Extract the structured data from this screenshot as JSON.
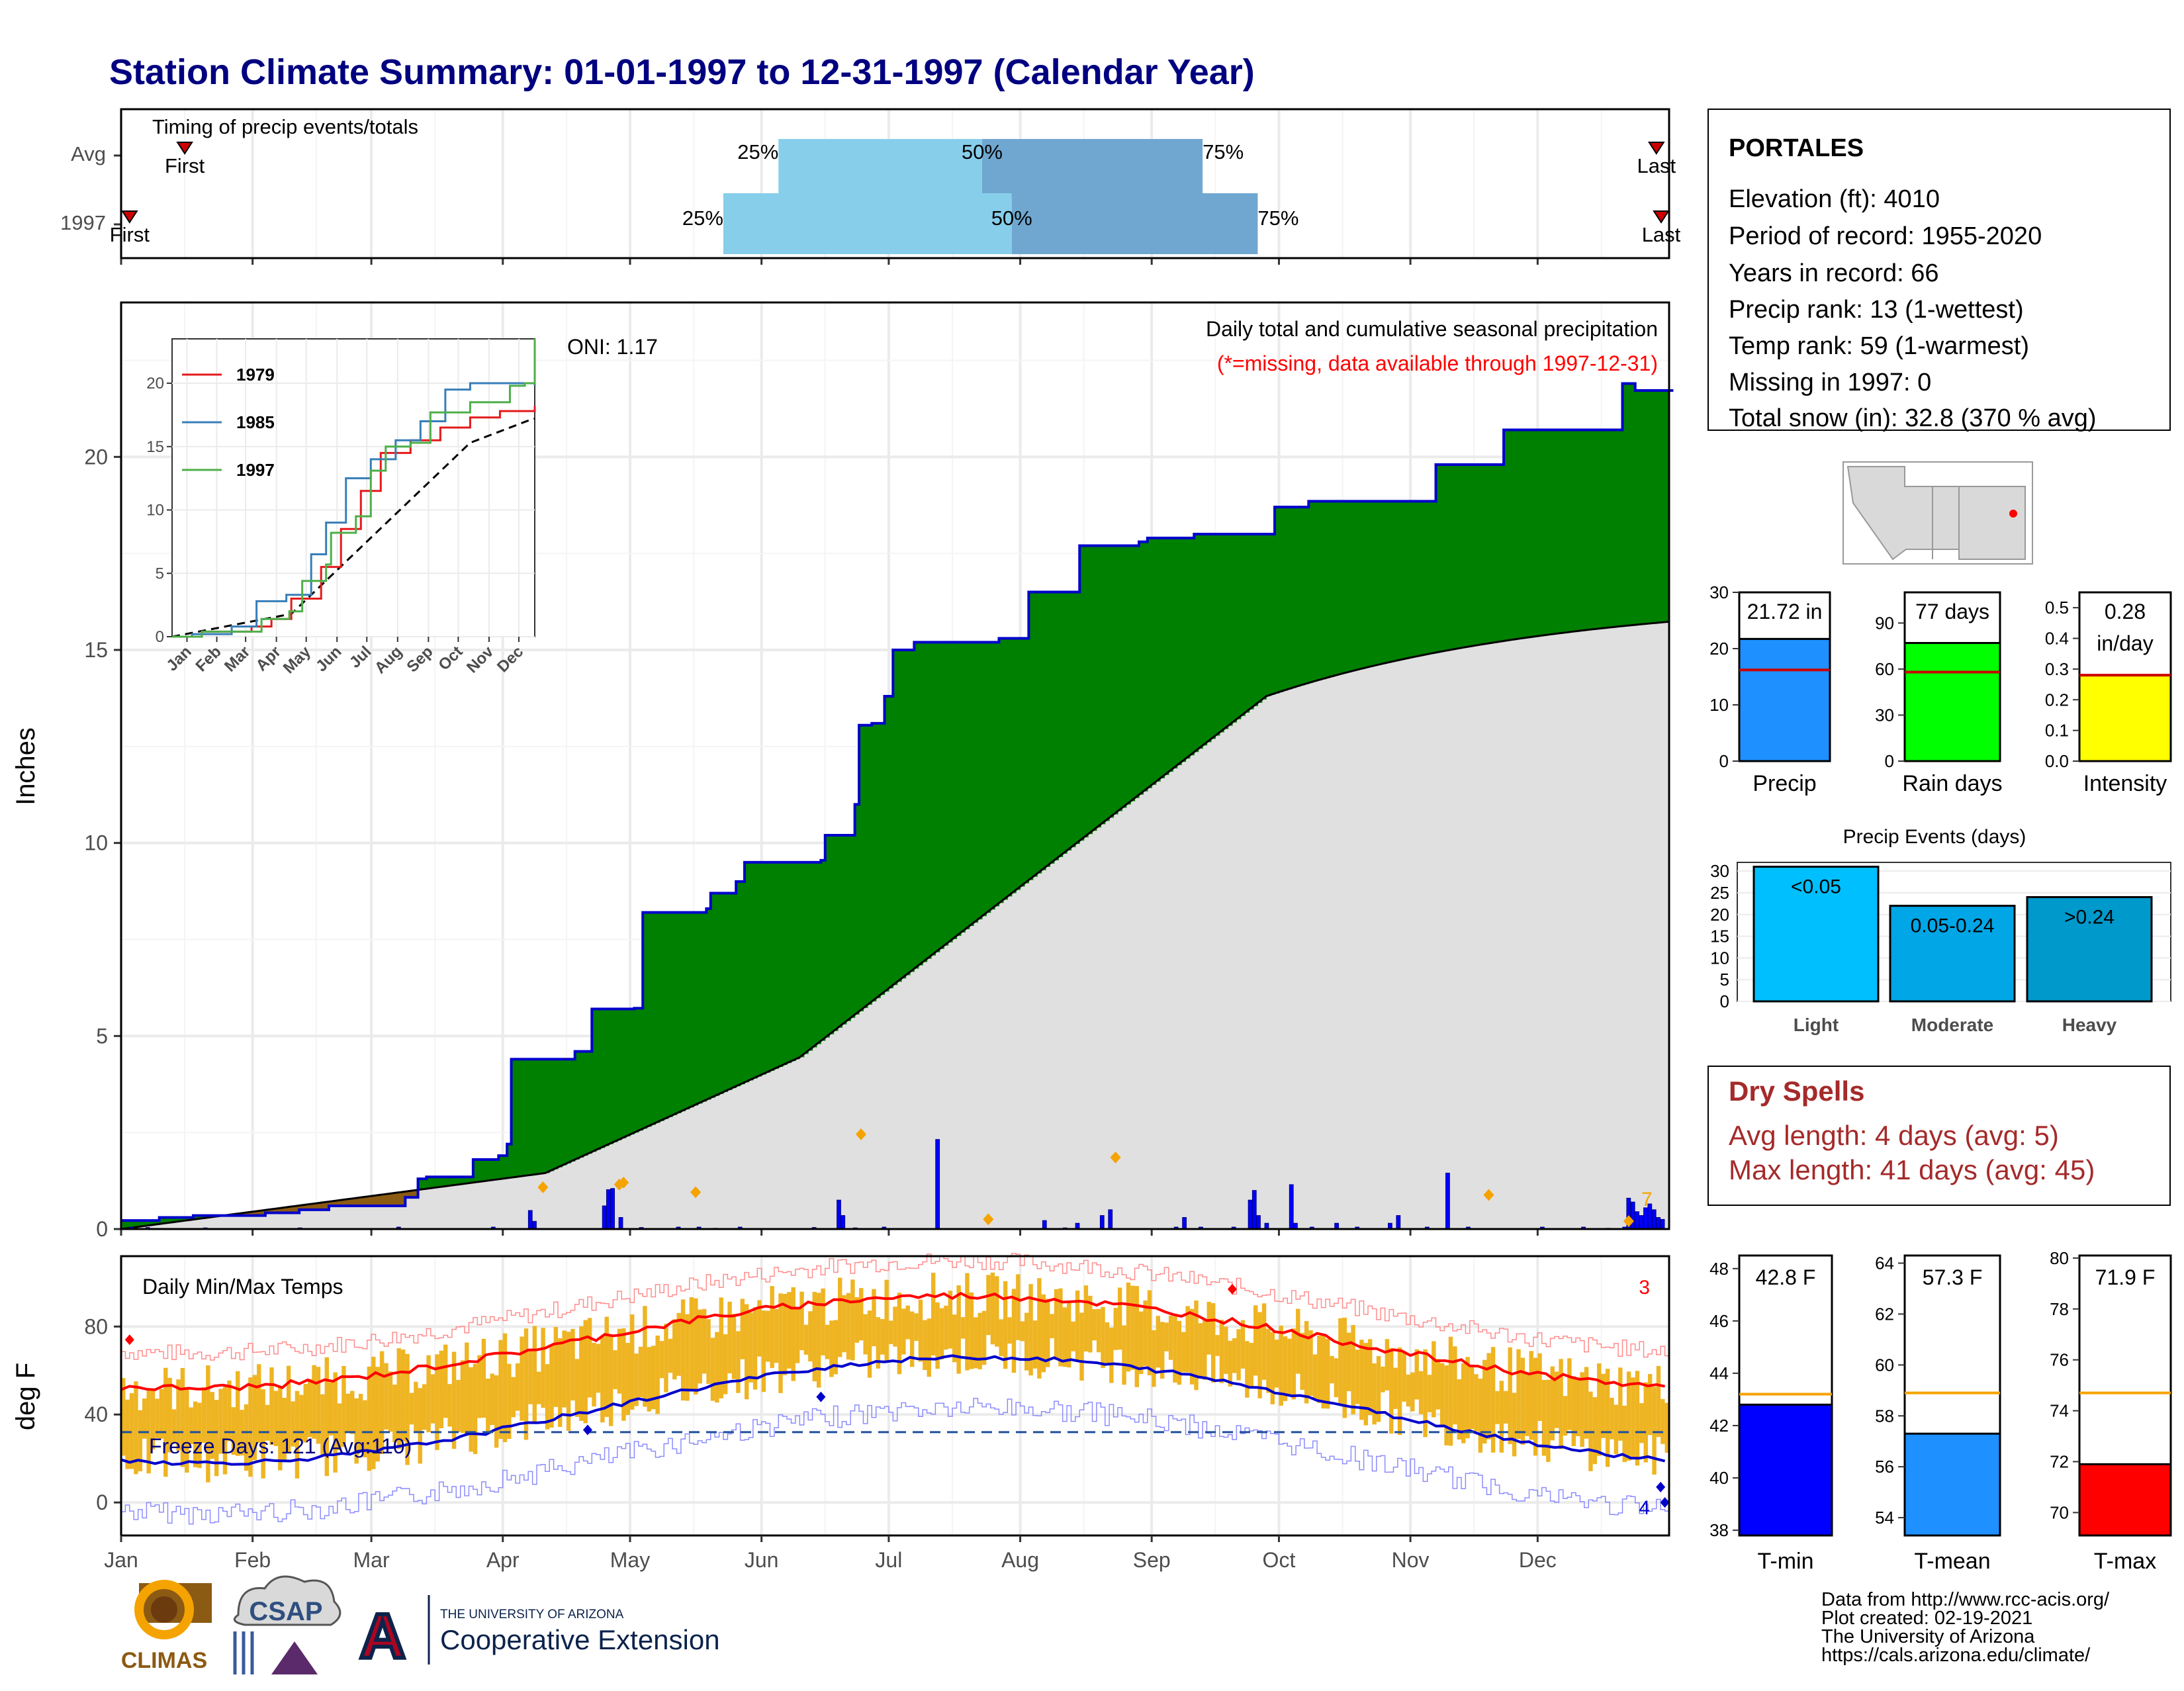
{
  "title": "Station Climate Summary: 01-01-1997 to 12-31-1997 (Calendar Year)",
  "months": [
    "Jan",
    "Feb",
    "Mar",
    "Apr",
    "May",
    "Jun",
    "Jul",
    "Aug",
    "Sep",
    "Oct",
    "Nov",
    "Dec"
  ],
  "timing": {
    "title": "Timing of precip events/totals",
    "rows": [
      {
        "label": "Avg",
        "first_label": "First",
        "last_label": "Last",
        "first_doy": 15,
        "p25": 155,
        "p50": 203,
        "p75": 255,
        "last_doy": 362
      },
      {
        "label": "1997",
        "first_label": "First",
        "last_label": "Last",
        "first_doy": 2,
        "p25": 142,
        "p50": 210,
        "p75": 268,
        "last_doy": 371
      }
    ],
    "p25_label": "25%",
    "p50_label": "50%",
    "p75_label": "75%",
    "colors": {
      "light": "#87ceeb",
      "dark": "#6fa7d0",
      "marker": "#cc0000"
    }
  },
  "main": {
    "ylabel": "Inches",
    "oni": "ONI: 1.17",
    "subtitle": "Daily total and cumulative seasonal precipitation",
    "missing_note": "(*=missing, data available through 1997-12-31)",
    "yticks": [
      0,
      5,
      10,
      15,
      20
    ],
    "ylim": [
      0,
      24
    ],
    "count_label": "7",
    "colors": {
      "above": "#008000",
      "below": "#8b5a13",
      "avg_fill": "#e0e0e0",
      "line": "#0000cc",
      "bar": "#0000ff",
      "marker": "#f5a300"
    }
  },
  "inset": {
    "legend": [
      "1979",
      "1985",
      "1997"
    ],
    "colors": [
      "#e41a1c",
      "#377eb8",
      "#4daf4a"
    ],
    "yticks": [
      0,
      5,
      10,
      15,
      20
    ],
    "months": [
      "Jan",
      "Feb",
      "Mar",
      "Apr",
      "May",
      "Jun",
      "Jul",
      "Aug",
      "Sep",
      "Oct",
      "Nov",
      "Dec"
    ]
  },
  "temps": {
    "title": "Daily Min/Max Temps",
    "ylabel": "deg F",
    "yticks": [
      0,
      40,
      80
    ],
    "freeze_label": "Freeze Days: 121 (Avg:110)",
    "hot_count": "3",
    "cold_count": "4",
    "colors": {
      "bar": "#eeb422",
      "max_avg": "#ff0000",
      "min_avg": "#0000cc"
    }
  },
  "station": {
    "name": "PORTALES",
    "lines": [
      "Elevation (ft): 4010",
      "Period of record: 1955-2020",
      "Years in record: 66",
      "Precip rank: 13 (1-wettest)",
      "Temp rank: 59 (1-warmest)",
      "Missing in 1997: 0",
      "Total snow (in): 32.8 (370 % avg)"
    ]
  },
  "mini_bars": [
    {
      "label": "Precip",
      "value_label": "21.72 in",
      "value": 21.72,
      "avg": 16.2,
      "max": 30,
      "ticks": [
        "0",
        "10",
        "20",
        "30"
      ],
      "color": "#1e90ff"
    },
    {
      "label": "Rain days",
      "value_label": "77 days",
      "value": 77,
      "avg": 58,
      "max": 110,
      "ticks": [
        "0",
        "30",
        "60",
        "90"
      ],
      "color": "#00ff00"
    },
    {
      "label": "Intensity",
      "value_label": "0.28",
      "value_label2": "in/day",
      "value": 0.28,
      "avg": 0.28,
      "max": 0.55,
      "ticks": [
        "0.0",
        "0.1",
        "0.2",
        "0.3",
        "0.4",
        "0.5"
      ],
      "color": "#ffff00"
    }
  ],
  "events": {
    "title": "Precip Events (days)",
    "categories": [
      "Light",
      "Moderate",
      "Heavy"
    ],
    "bar_labels": [
      "<0.05",
      "0.05-0.24",
      ">0.24"
    ],
    "values": [
      31,
      22,
      24
    ],
    "yticks": [
      "0",
      "5",
      "10",
      "15",
      "20",
      "25",
      "30"
    ],
    "colors": [
      "#00bfff",
      "#00a6e6",
      "#0099cc"
    ]
  },
  "dry_spells": {
    "title": "Dry Spells",
    "avg_line": "Avg length: 4 days (avg: 5)",
    "max_line": "Max length: 41 days (avg: 45)"
  },
  "temp_bars": [
    {
      "label": "T-min",
      "value_label": "42.8 F",
      "value": 42.8,
      "avg": 43.2,
      "ymin": 37.8,
      "ymax": 48.5,
      "ticks": [
        38,
        40,
        42,
        44,
        46,
        48
      ],
      "color": "#0000ff"
    },
    {
      "label": "T-mean",
      "value_label": "57.3 F",
      "value": 57.3,
      "avg": 58.9,
      "ymin": 53.3,
      "ymax": 64.3,
      "ticks": [
        54,
        56,
        58,
        60,
        62,
        64
      ],
      "color": "#1e90ff"
    },
    {
      "label": "T-max",
      "value_label": "71.9 F",
      "value": 71.9,
      "avg": 74.7,
      "ymin": 69.1,
      "ymax": 80.1,
      "ticks": [
        70,
        72,
        74,
        76,
        78,
        80
      ],
      "color": "#ff0000"
    }
  ],
  "credits": [
    "Data from http://www.rcc-acis.org/",
    "Plot created: 02-19-2021",
    "The University of Arizona",
    "https://cals.arizona.edu/climate/"
  ],
  "logos": {
    "climas": "CLIMAS",
    "csap": "CSAP",
    "ua_small": "THE UNIVERSITY OF ARIZONA",
    "ua_big": "Cooperative Extension",
    "ua_letter": "A"
  }
}
